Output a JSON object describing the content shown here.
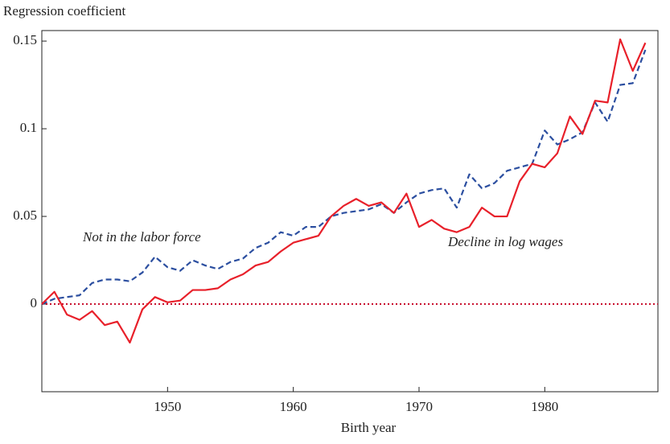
{
  "chart_data": {
    "type": "line",
    "y_label": "Regression coefficient",
    "x_label": "Birth year",
    "annotations": [
      "Not in the labor force",
      "Decline in log wages"
    ],
    "x": [
      1940,
      1941,
      1942,
      1943,
      1944,
      1945,
      1946,
      1947,
      1948,
      1949,
      1950,
      1951,
      1952,
      1953,
      1954,
      1955,
      1956,
      1957,
      1958,
      1959,
      1960,
      1961,
      1962,
      1963,
      1964,
      1965,
      1966,
      1967,
      1968,
      1969,
      1970,
      1971,
      1972,
      1973,
      1974,
      1975,
      1976,
      1977,
      1978,
      1979,
      1980,
      1981,
      1982,
      1983,
      1984,
      1985,
      1986,
      1987,
      1988
    ],
    "series": [
      {
        "name": "Not in the labor force",
        "color": "#2c4fa0",
        "dashed": true,
        "values": [
          0,
          0.003,
          0.004,
          0.005,
          0.012,
          0.014,
          0.014,
          0.013,
          0.018,
          0.027,
          0.021,
          0.019,
          0.025,
          0.022,
          0.02,
          0.024,
          0.026,
          0.032,
          0.035,
          0.041,
          0.039,
          0.044,
          0.044,
          0.05,
          0.052,
          0.053,
          0.054,
          0.057,
          0.052,
          0.058,
          0.063,
          0.065,
          0.066,
          0.055,
          0.074,
          0.066,
          0.069,
          0.076,
          0.078,
          0.08,
          0.099,
          0.091,
          0.094,
          0.098,
          0.115,
          0.104,
          0.125,
          0.126,
          0.145
        ]
      },
      {
        "name": "Decline in log wages",
        "color": "#e8202a",
        "dashed": false,
        "values": [
          0,
          0.007,
          -0.006,
          -0.009,
          -0.004,
          -0.012,
          -0.01,
          -0.022,
          -0.003,
          0.004,
          0.001,
          0.002,
          0.008,
          0.008,
          0.009,
          0.014,
          0.017,
          0.022,
          0.024,
          0.03,
          0.035,
          0.037,
          0.039,
          0.05,
          0.056,
          0.06,
          0.056,
          0.058,
          0.052,
          0.063,
          0.044,
          0.048,
          0.043,
          0.041,
          0.044,
          0.055,
          0.05,
          0.05,
          0.07,
          0.08,
          0.078,
          0.086,
          0.107,
          0.097,
          0.116,
          0.115,
          0.151,
          0.133,
          0.149
        ]
      }
    ],
    "reference_line": {
      "value": 0,
      "color": "#c8102e",
      "dotted": true
    },
    "xlim": [
      1940,
      1989
    ],
    "xticks": [
      1950,
      1960,
      1970,
      1980
    ],
    "ylim": [
      -0.05,
      0.156
    ],
    "yticks": [
      0,
      0.05,
      0.1,
      0.15
    ],
    "grid": false
  }
}
